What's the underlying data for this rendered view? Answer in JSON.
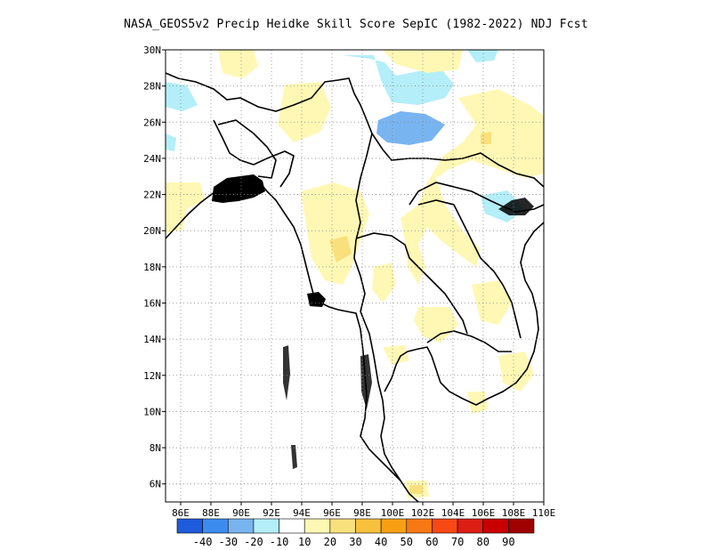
{
  "title": "NASA_GEOS5v2 Precip Heidke Skill Score SepIC (1982-2022) NDJ Fcst",
  "map": {
    "lon_range": [
      85,
      110
    ],
    "lat_range": [
      5,
      30
    ],
    "lon_ticks": [
      "86E",
      "88E",
      "90E",
      "92E",
      "94E",
      "96E",
      "98E",
      "100E",
      "102E",
      "104E",
      "106E",
      "108E",
      "110E"
    ],
    "lat_ticks": [
      "6N",
      "8N",
      "10N",
      "12N",
      "14N",
      "16N",
      "18N",
      "20N",
      "22N",
      "24N",
      "26N",
      "28N",
      "30N"
    ],
    "grid": "dotted"
  },
  "colorbar": {
    "colors": [
      "#1e5cdc",
      "#3c8cf0",
      "#78b4f0",
      "#b4eef8",
      "#ffffff",
      "#fff8b4",
      "#f8e07c",
      "#f8c03c",
      "#f8a014",
      "#f87814",
      "#f84814",
      "#dc1e14",
      "#c80000",
      "#a00000"
    ],
    "labels": [
      "-40",
      "-30",
      "-20",
      "-10",
      "10",
      "20",
      "30",
      "40",
      "50",
      "60",
      "70",
      "80",
      "90"
    ]
  }
}
